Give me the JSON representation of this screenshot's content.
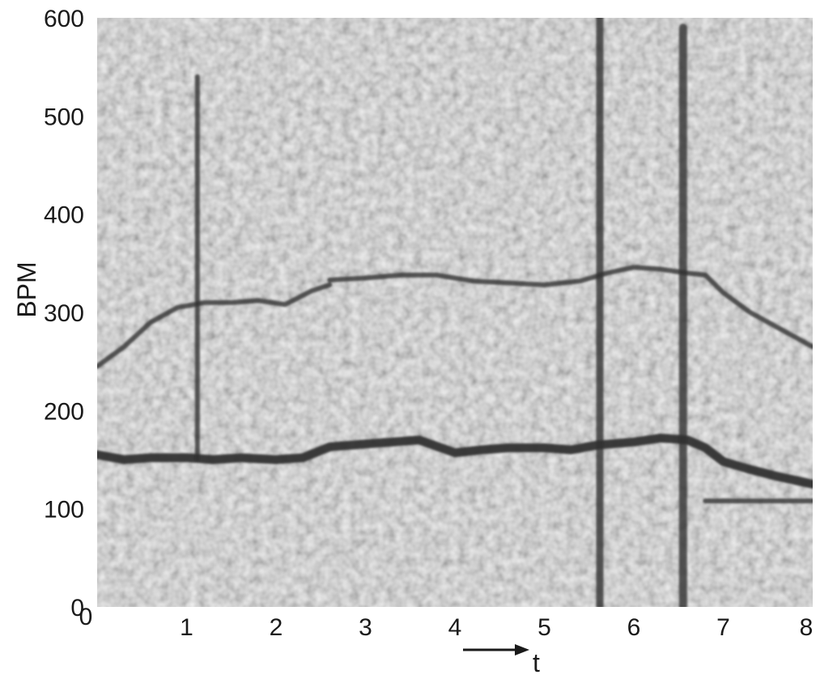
{
  "chart_data": {
    "type": "heatmap",
    "title": "",
    "xlabel": "t",
    "ylabel": "BPM",
    "xlim": [
      0,
      8
    ],
    "ylim": [
      0,
      600
    ],
    "x_ticks": [
      0,
      1,
      2,
      3,
      4,
      5,
      6,
      7,
      8
    ],
    "y_ticks": [
      0,
      100,
      200,
      300,
      400,
      500,
      600
    ],
    "x_tick_labels": [
      "0",
      "1",
      "2",
      "3",
      "4",
      "5",
      "6",
      "7",
      "8"
    ],
    "y_tick_labels": [
      "0",
      "100",
      "200",
      "300",
      "400",
      "500",
      "600"
    ],
    "colors": {
      "background": "#d6d6d6",
      "trace": "#2e2e2e",
      "axis": "#1a1a1a"
    },
    "traces": [
      {
        "x": [
          0.0,
          0.3,
          0.6,
          1.0,
          1.3,
          1.6,
          2.0,
          2.3,
          2.6,
          3.0,
          3.3,
          3.6,
          4.0,
          4.3,
          4.6,
          5.0,
          5.3,
          5.6,
          6.0,
          6.3,
          6.6,
          6.8,
          7.0,
          7.3,
          7.6,
          8.0
        ],
        "y": [
          155,
          150,
          152,
          152,
          150,
          152,
          150,
          152,
          163,
          166,
          168,
          170,
          157,
          160,
          162,
          162,
          160,
          165,
          168,
          172,
          170,
          162,
          148,
          140,
          133,
          125
        ]
      },
      {
        "x": [
          0.0,
          0.3,
          0.6,
          0.9,
          1.2,
          1.5,
          1.8,
          2.1,
          2.4,
          2.6
        ],
        "y": [
          245,
          265,
          290,
          305,
          310,
          310,
          312,
          308,
          322,
          328
        ]
      },
      {
        "x": [
          2.6,
          3.0,
          3.4,
          3.8,
          4.2,
          4.6,
          5.0,
          5.4,
          5.7,
          6.0,
          6.3,
          6.6,
          6.8,
          7.0,
          7.3,
          7.6,
          8.0
        ],
        "y": [
          333,
          335,
          338,
          338,
          332,
          330,
          328,
          332,
          340,
          346,
          344,
          340,
          338,
          320,
          300,
          285,
          265
        ]
      },
      {
        "x": [
          6.8,
          7.0,
          7.5,
          8.0
        ],
        "y": [
          108,
          108,
          108,
          108
        ]
      },
      {
        "x": [
          1.12,
          1.12
        ],
        "y": [
          150,
          540
        ],
        "width": 6
      },
      {
        "x": [
          5.62,
          5.62
        ],
        "y": [
          0,
          600
        ],
        "width": 9
      },
      {
        "x": [
          6.55,
          6.55
        ],
        "y": [
          0,
          590
        ],
        "width": 10
      }
    ]
  }
}
